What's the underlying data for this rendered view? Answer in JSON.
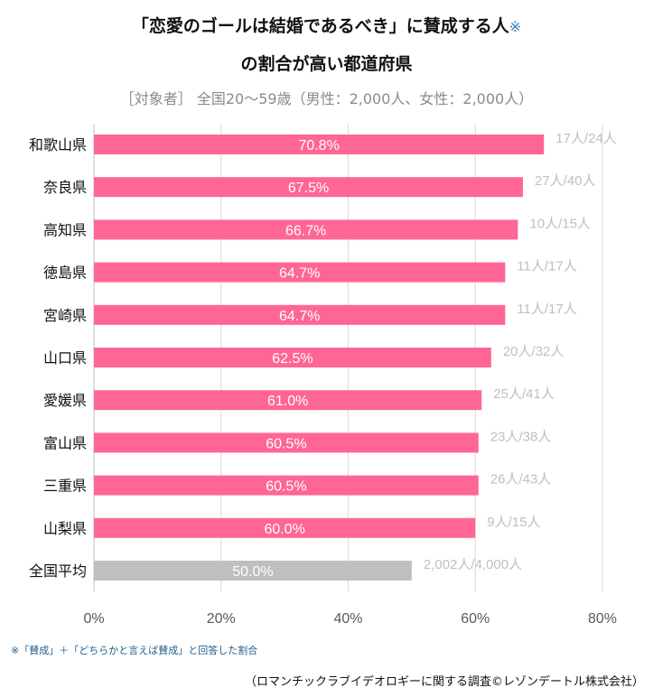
{
  "header": {
    "title_line1": "「恋愛のゴールは結婚であるべき」に賛成する人",
    "title_note": "※",
    "title_line2": "の割合が高い都道府県",
    "subtitle": "［対象者］ 全国20～59歳（男性：2,000人、女性：2,000人）"
  },
  "footer": {
    "note": "※「賛成」＋「どちらかと言えば賛成」と回答した割合",
    "source": "（ロマンチックラブイデオロギーに関する調査©レゾンデートル株式会社）"
  },
  "colors": {
    "bar": "#ff6694",
    "average": "#bfbfbf",
    "grid": "#d9d9d9",
    "count": "#bfbfbf"
  },
  "chart_data": {
    "type": "bar",
    "orientation": "horizontal",
    "categories": [
      "和歌山県",
      "奈良県",
      "高知県",
      "徳島県",
      "宮崎県",
      "山口県",
      "愛媛県",
      "富山県",
      "三重県",
      "山梨県",
      "全国平均"
    ],
    "values": [
      70.8,
      67.5,
      66.7,
      64.7,
      64.7,
      62.5,
      61.0,
      60.5,
      60.5,
      60.0,
      50.0
    ],
    "value_labels": [
      "70.8%",
      "67.5%",
      "66.7%",
      "64.7%",
      "64.7%",
      "62.5%",
      "61.0%",
      "60.5%",
      "60.5%",
      "60.0%",
      "50.0%"
    ],
    "counts": [
      "17人/24人",
      "27人/40人",
      "10人/15人",
      "11人/17人",
      "11人/17人",
      "20人/32人",
      "25人/41人",
      "23人/38人",
      "26人/43人",
      "9人/15人",
      "2,002人/4,000人"
    ],
    "xlim": [
      0,
      80
    ],
    "xticks": [
      0,
      20,
      40,
      60,
      80
    ],
    "xtick_labels": [
      "0%",
      "20%",
      "40%",
      "60%",
      "80%"
    ],
    "grid": true,
    "xlabel": "",
    "ylabel": ""
  }
}
